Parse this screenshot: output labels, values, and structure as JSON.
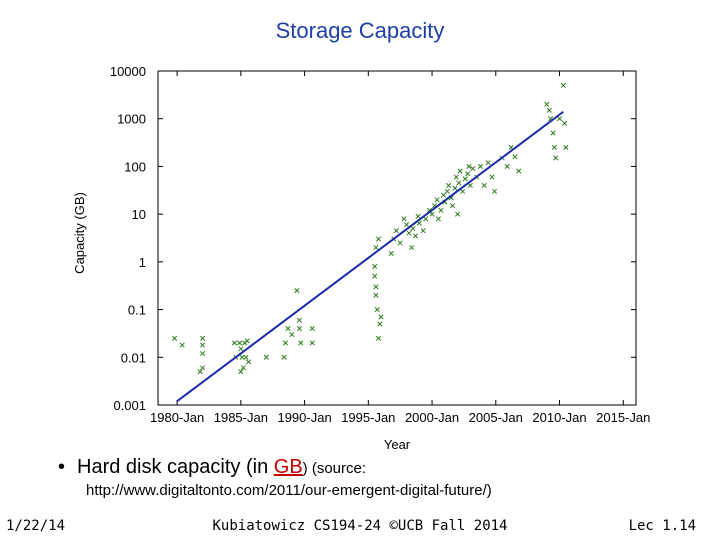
{
  "slide": {
    "title": "Storage Capacity",
    "bullet_prefix": "Hard disk capacity (in ",
    "bullet_link": "GB",
    "bullet_suffix": ") (source:",
    "source_url": "http://www.digitaltonto.com/2011/our-emergent-digital-future/)",
    "footer_left": "1/22/14",
    "footer_center": "Kubiatowicz CS194-24 ©UCB Fall 2014",
    "footer_right": "Lec 1.14"
  },
  "colors": {
    "title": "#1f3fa6",
    "points": "#2e7d1e",
    "trend": "#1a2aa8",
    "link": "#c00000"
  },
  "chart_data": {
    "type": "scatter",
    "title": "",
    "xlabel": "Year",
    "ylabel": "Capacity (GB)",
    "y_scale": "log",
    "ylim": [
      0.001,
      10000
    ],
    "xlim": [
      "1978-06",
      "2016-01"
    ],
    "y_ticks": [
      {
        "value": 0.001,
        "label": "0.001"
      },
      {
        "value": 0.01,
        "label": "0.01"
      },
      {
        "value": 0.1,
        "label": "0.1"
      },
      {
        "value": 1,
        "label": "1"
      },
      {
        "value": 10,
        "label": "10"
      },
      {
        "value": 100,
        "label": "100"
      },
      {
        "value": 1000,
        "label": "1000"
      },
      {
        "value": 10000,
        "label": "10000"
      }
    ],
    "x_ticks": [
      {
        "value": 1980,
        "label": "1980-Jan"
      },
      {
        "value": 1985,
        "label": "1985-Jan"
      },
      {
        "value": 1990,
        "label": "1990-Jan"
      },
      {
        "value": 1995,
        "label": "1995-Jan"
      },
      {
        "value": 2000,
        "label": "2000-Jan"
      },
      {
        "value": 2005,
        "label": "2005-Jan"
      },
      {
        "value": 2010,
        "label": "2010-Jan"
      },
      {
        "value": 2015,
        "label": "2015-Jan"
      }
    ],
    "grid": false,
    "trend_line": {
      "x": [
        1980.0,
        2010.3
      ],
      "y": [
        0.0012,
        1400
      ]
    },
    "points": [
      {
        "x": 1979.8,
        "y": 0.025
      },
      {
        "x": 1980.4,
        "y": 0.018
      },
      {
        "x": 1982.0,
        "y": 0.025
      },
      {
        "x": 1982.0,
        "y": 0.018
      },
      {
        "x": 1982.0,
        "y": 0.012
      },
      {
        "x": 1982.0,
        "y": 0.006
      },
      {
        "x": 1981.8,
        "y": 0.005
      },
      {
        "x": 1984.5,
        "y": 0.02
      },
      {
        "x": 1984.6,
        "y": 0.01
      },
      {
        "x": 1984.9,
        "y": 0.02
      },
      {
        "x": 1985.0,
        "y": 0.015
      },
      {
        "x": 1985.1,
        "y": 0.01
      },
      {
        "x": 1985.2,
        "y": 0.006
      },
      {
        "x": 1985.3,
        "y": 0.02
      },
      {
        "x": 1985.4,
        "y": 0.01
      },
      {
        "x": 1985.0,
        "y": 0.005
      },
      {
        "x": 1985.5,
        "y": 0.022
      },
      {
        "x": 1985.6,
        "y": 0.008
      },
      {
        "x": 1987.0,
        "y": 0.01
      },
      {
        "x": 1988.5,
        "y": 0.02
      },
      {
        "x": 1988.7,
        "y": 0.04
      },
      {
        "x": 1988.4,
        "y": 0.01
      },
      {
        "x": 1989.0,
        "y": 0.03
      },
      {
        "x": 1989.6,
        "y": 0.06
      },
      {
        "x": 1989.6,
        "y": 0.04
      },
      {
        "x": 1989.7,
        "y": 0.02
      },
      {
        "x": 1990.6,
        "y": 0.04
      },
      {
        "x": 1990.6,
        "y": 0.02
      },
      {
        "x": 1989.4,
        "y": 0.25
      },
      {
        "x": 1995.5,
        "y": 0.8
      },
      {
        "x": 1995.5,
        "y": 0.5
      },
      {
        "x": 1995.6,
        "y": 0.3
      },
      {
        "x": 1995.6,
        "y": 0.2
      },
      {
        "x": 1995.7,
        "y": 0.1
      },
      {
        "x": 1995.8,
        "y": 0.025
      },
      {
        "x": 1995.9,
        "y": 0.05
      },
      {
        "x": 1996.0,
        "y": 0.07
      },
      {
        "x": 1995.6,
        "y": 2.0
      },
      {
        "x": 1995.8,
        "y": 3.0
      },
      {
        "x": 1996.8,
        "y": 1.5
      },
      {
        "x": 1997.0,
        "y": 3.0
      },
      {
        "x": 1997.2,
        "y": 4.5
      },
      {
        "x": 1997.5,
        "y": 2.5
      },
      {
        "x": 1997.8,
        "y": 8.0
      },
      {
        "x": 1998.0,
        "y": 6.0
      },
      {
        "x": 1998.2,
        "y": 4.0
      },
      {
        "x": 1998.5,
        "y": 5.0
      },
      {
        "x": 1998.7,
        "y": 3.5
      },
      {
        "x": 1998.9,
        "y": 9.0
      },
      {
        "x": 1999.0,
        "y": 6.5
      },
      {
        "x": 1998.4,
        "y": 2.0
      },
      {
        "x": 1999.3,
        "y": 4.5
      },
      {
        "x": 2000.0,
        "y": 10.0
      },
      {
        "x": 2000.2,
        "y": 15.0
      },
      {
        "x": 2000.4,
        "y": 20.0
      },
      {
        "x": 2000.5,
        "y": 8.0
      },
      {
        "x": 2000.7,
        "y": 12.0
      },
      {
        "x": 2000.9,
        "y": 25.0
      },
      {
        "x": 2001.0,
        "y": 18.0
      },
      {
        "x": 2001.2,
        "y": 30.0
      },
      {
        "x": 2001.3,
        "y": 40.0
      },
      {
        "x": 2001.5,
        "y": 22.0
      },
      {
        "x": 2001.6,
        "y": 15.0
      },
      {
        "x": 2001.8,
        "y": 35.0
      },
      {
        "x": 2001.9,
        "y": 60.0
      },
      {
        "x": 2002.1,
        "y": 45.0
      },
      {
        "x": 2002.2,
        "y": 80.0
      },
      {
        "x": 2002.4,
        "y": 30.0
      },
      {
        "x": 2002.6,
        "y": 55.0
      },
      {
        "x": 2002.8,
        "y": 70.0
      },
      {
        "x": 2003.0,
        "y": 40.0
      },
      {
        "x": 2003.2,
        "y": 90.0
      },
      {
        "x": 2003.5,
        "y": 60.0
      },
      {
        "x": 2003.8,
        "y": 100.0
      },
      {
        "x": 2004.1,
        "y": 40.0
      },
      {
        "x": 2004.4,
        "y": 120.0
      },
      {
        "x": 2004.7,
        "y": 60.0
      },
      {
        "x": 2004.9,
        "y": 30.0
      },
      {
        "x": 2005.5,
        "y": 150.0
      },
      {
        "x": 2005.9,
        "y": 100.0
      },
      {
        "x": 2006.2,
        "y": 250.0
      },
      {
        "x": 2006.5,
        "y": 160.0
      },
      {
        "x": 2006.8,
        "y": 80.0
      },
      {
        "x": 2002.9,
        "y": 100.0
      },
      {
        "x": 2002.0,
        "y": 10.0
      },
      {
        "x": 1999.5,
        "y": 8.0
      },
      {
        "x": 1999.8,
        "y": 12.0
      },
      {
        "x": 2009.0,
        "y": 2000.0
      },
      {
        "x": 2009.2,
        "y": 1500.0
      },
      {
        "x": 2009.3,
        "y": 1000.0
      },
      {
        "x": 2009.5,
        "y": 500.0
      },
      {
        "x": 2009.6,
        "y": 250.0
      },
      {
        "x": 2009.7,
        "y": 150.0
      },
      {
        "x": 2010.0,
        "y": 1000.0
      },
      {
        "x": 2010.3,
        "y": 5000.0
      },
      {
        "x": 2010.4,
        "y": 800.0
      },
      {
        "x": 2010.5,
        "y": 250.0
      }
    ]
  }
}
